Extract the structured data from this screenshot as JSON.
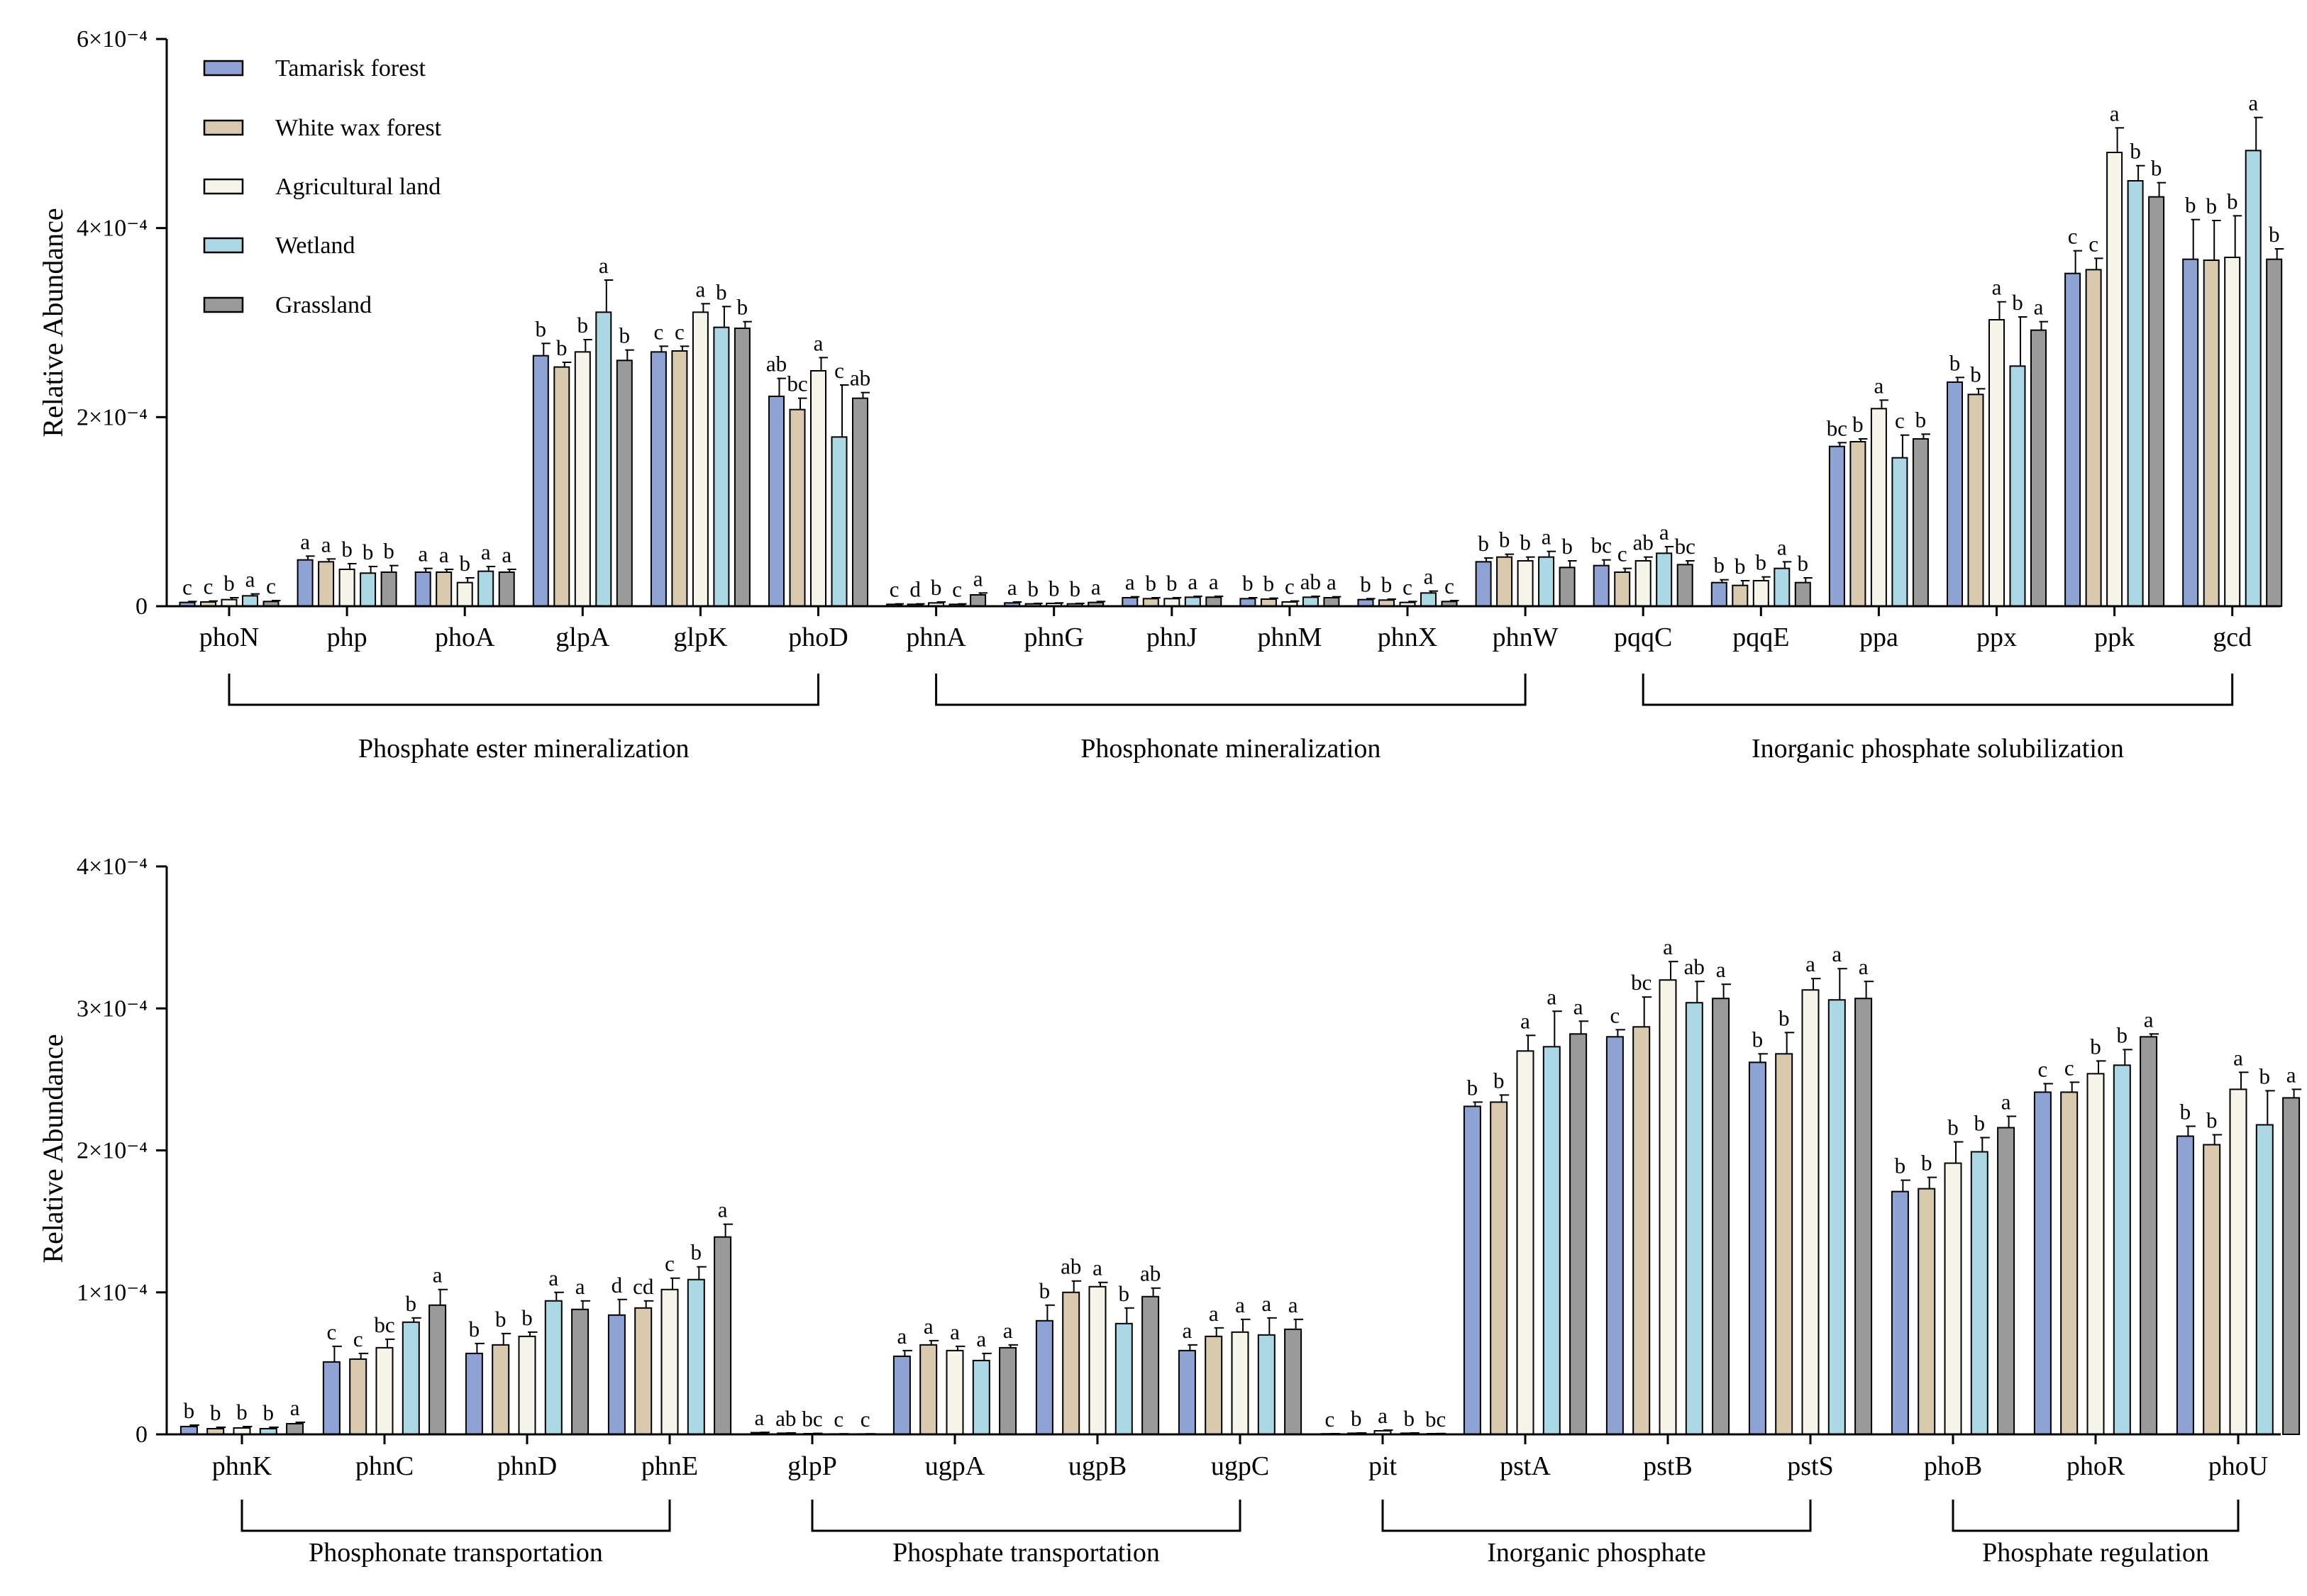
{
  "chart_data": [
    {
      "type": "bar",
      "ylabel": "Relative Abundance",
      "ylim": [
        0,
        0.0006
      ],
      "ytick_labels": [
        "0",
        "2×10⁻⁴",
        "4×10⁻⁴",
        "6×10⁻⁴"
      ],
      "legend_position": "top-left",
      "series": [
        {
          "name": "Tamarisk forest",
          "color": "#8ea3d3"
        },
        {
          "name": "White wax forest",
          "color": "#d9c9ae"
        },
        {
          "name": "Agricultural land",
          "color": "#f7f4ea"
        },
        {
          "name": "Wetland",
          "color": "#acd8e6"
        },
        {
          "name": "Grassland",
          "color": "#9a9a9a"
        }
      ],
      "categories": [
        {
          "gene": "phoN",
          "values": [
            4e-06,
            4.5e-06,
            7e-06,
            1.1e-05,
            5e-06
          ],
          "errors": [
            1e-06,
            1e-06,
            2e-06,
            2e-06,
            1e-06
          ],
          "letters": [
            "c",
            "c",
            "b",
            "a",
            "c"
          ]
        },
        {
          "gene": "php",
          "values": [
            4.9e-05,
            4.7e-05,
            3.9e-05,
            3.5e-05,
            3.6e-05
          ],
          "errors": [
            4e-06,
            3e-06,
            6e-06,
            7e-06,
            7e-06
          ],
          "letters": [
            "a",
            "a",
            "b",
            "b",
            "b"
          ]
        },
        {
          "gene": "phoA",
          "values": [
            3.6e-05,
            3.6e-05,
            2.5e-05,
            3.7e-05,
            3.6e-05
          ],
          "errors": [
            4e-06,
            3e-06,
            5e-06,
            5e-06,
            3e-06
          ],
          "letters": [
            "a",
            "a",
            "b",
            "a",
            "a"
          ]
        },
        {
          "gene": "glpA",
          "values": [
            0.000265,
            0.000253,
            0.000269,
            0.000311,
            0.00026
          ],
          "errors": [
            1.3e-05,
            5e-06,
            1.3e-05,
            3.4e-05,
            1.1e-05
          ],
          "letters": [
            "b",
            "b",
            "b",
            "a",
            "b"
          ]
        },
        {
          "gene": "glpK",
          "values": [
            0.000269,
            0.00027,
            0.000311,
            0.000295,
            0.000294
          ],
          "errors": [
            6e-06,
            5e-06,
            9e-06,
            2.2e-05,
            7e-06
          ],
          "letters": [
            "c",
            "c",
            "a",
            "b",
            "b"
          ]
        },
        {
          "gene": "phoD",
          "values": [
            0.000222,
            0.000208,
            0.000249,
            0.000179,
            0.00022
          ],
          "errors": [
            1.9e-05,
            1.2e-05,
            1.4e-05,
            5.5e-05,
            6e-06
          ],
          "letters": [
            "ab",
            "bc",
            "a",
            "c",
            "ab"
          ]
        },
        {
          "gene": "phnA",
          "values": [
            2e-06,
            2e-06,
            3.5e-06,
            2e-06,
            1.2e-05
          ],
          "errors": [
            5e-07,
            5e-07,
            1e-06,
            5e-07,
            2e-06
          ],
          "letters": [
            "c",
            "d",
            "b",
            "c",
            "a"
          ]
        },
        {
          "gene": "phnG",
          "values": [
            3.5e-06,
            2.5e-06,
            3e-06,
            2.5e-06,
            4e-06
          ],
          "errors": [
            1e-06,
            5e-07,
            5e-07,
            5e-07,
            1e-06
          ],
          "letters": [
            "a",
            "b",
            "b",
            "b",
            "a"
          ]
        },
        {
          "gene": "phnJ",
          "values": [
            9e-06,
            8e-06,
            8e-06,
            9.5e-06,
            9.5e-06
          ],
          "errors": [
            1e-06,
            1e-06,
            1e-06,
            1e-06,
            1e-06
          ],
          "letters": [
            "a",
            "b",
            "b",
            "a",
            "a"
          ]
        },
        {
          "gene": "phnM",
          "values": [
            8e-06,
            7.5e-06,
            4.5e-06,
            9.5e-06,
            9e-06
          ],
          "errors": [
            1e-06,
            1e-06,
            1e-06,
            1e-06,
            1e-06
          ],
          "letters": [
            "b",
            "b",
            "c",
            "ab",
            "a"
          ]
        },
        {
          "gene": "phnX",
          "values": [
            7e-06,
            6.5e-06,
            4e-06,
            1.4e-05,
            5e-06
          ],
          "errors": [
            1e-06,
            1e-06,
            1e-06,
            2e-06,
            1e-06
          ],
          "letters": [
            "b",
            "b",
            "c",
            "a",
            "c"
          ]
        },
        {
          "gene": "phnW",
          "values": [
            4.7e-05,
            5.2e-05,
            4.8e-05,
            5.2e-05,
            4.1e-05
          ],
          "errors": [
            4e-06,
            3e-06,
            4e-06,
            6e-06,
            7e-06
          ],
          "letters": [
            "b",
            "b",
            "b",
            "a",
            "b"
          ]
        },
        {
          "gene": "pqqC",
          "values": [
            4.3e-05,
            3.6e-05,
            4.8e-05,
            5.6e-05,
            4.4e-05
          ],
          "errors": [
            6e-06,
            4e-06,
            4e-06,
            7e-06,
            4e-06
          ],
          "letters": [
            "bc",
            "c",
            "ab",
            "a",
            "bc"
          ]
        },
        {
          "gene": "pqqE",
          "values": [
            2.5e-05,
            2.2e-05,
            2.7e-05,
            4e-05,
            2.5e-05
          ],
          "errors": [
            3e-06,
            5e-06,
            4e-06,
            7e-06,
            5e-06
          ],
          "letters": [
            "b",
            "b",
            "b",
            "a",
            "b"
          ]
        },
        {
          "gene": "ppa",
          "values": [
            0.000169,
            0.000174,
            0.000209,
            0.000157,
            0.000177
          ],
          "errors": [
            4e-06,
            3e-06,
            9e-06,
            2.4e-05,
            5e-06
          ],
          "letters": [
            "bc",
            "b",
            "a",
            "c",
            "b"
          ]
        },
        {
          "gene": "ppx",
          "values": [
            0.000237,
            0.000224,
            0.000303,
            0.000254,
            0.000292
          ],
          "errors": [
            5e-06,
            6e-06,
            1.9e-05,
            5.2e-05,
            9e-06
          ],
          "letters": [
            "b",
            "b",
            "a",
            "b",
            "a"
          ]
        },
        {
          "gene": "ppk",
          "values": [
            0.000352,
            0.000356,
            0.00048,
            0.00045,
            0.000433
          ],
          "errors": [
            2.4e-05,
            1.2e-05,
            2.6e-05,
            1.6e-05,
            1.5e-05
          ],
          "letters": [
            "c",
            "c",
            "a",
            "b",
            "b"
          ]
        },
        {
          "gene": "gcd",
          "values": [
            0.000367,
            0.000366,
            0.000369,
            0.000482,
            0.000367
          ],
          "errors": [
            4.2e-05,
            4.2e-05,
            4.4e-05,
            3.5e-05,
            1.1e-05
          ],
          "letters": [
            "b",
            "b",
            "b",
            "a",
            "b"
          ]
        }
      ],
      "group_labels": [
        "Phosphate ester mineralization",
        "Phosphonate mineralization",
        "Inorganic phosphate solubilization"
      ]
    },
    {
      "type": "bar",
      "ylabel": "Relative Abundance",
      "ylim": [
        0,
        0.0004
      ],
      "ytick_labels": [
        "0",
        "1×10⁻⁴",
        "2×10⁻⁴",
        "3×10⁻⁴",
        "4×10⁻⁴"
      ],
      "series": [
        {
          "name": "Tamarisk forest",
          "color": "#8ea3d3"
        },
        {
          "name": "White wax forest",
          "color": "#d9c9ae"
        },
        {
          "name": "Agricultural land",
          "color": "#f7f4ea"
        },
        {
          "name": "Wetland",
          "color": "#acd8e6"
        },
        {
          "name": "Grassland",
          "color": "#9a9a9a"
        }
      ],
      "categories": [
        {
          "gene": "phnK",
          "values": [
            5.5e-06,
            4e-06,
            4.5e-06,
            4e-06,
            7.5e-06
          ],
          "errors": [
            1e-06,
            1e-06,
            1e-06,
            1e-06,
            1e-06
          ],
          "letters": [
            "b",
            "b",
            "b",
            "b",
            "a"
          ]
        },
        {
          "gene": "phnC",
          "values": [
            5.1e-05,
            5.3e-05,
            6.1e-05,
            7.9e-05,
            9.1e-05
          ],
          "errors": [
            1.1e-05,
            4e-06,
            6e-06,
            3e-06,
            1.1e-05
          ],
          "letters": [
            "c",
            "c",
            "bc",
            "b",
            "a"
          ]
        },
        {
          "gene": "phnD",
          "values": [
            5.7e-05,
            6.3e-05,
            6.9e-05,
            9.4e-05,
            8.8e-05
          ],
          "errors": [
            7e-06,
            8e-06,
            3e-06,
            6e-06,
            6e-06
          ],
          "letters": [
            "b",
            "b",
            "b",
            "a",
            "a"
          ]
        },
        {
          "gene": "phnE",
          "values": [
            8.4e-05,
            8.9e-05,
            0.000102,
            0.000109,
            0.000139
          ],
          "errors": [
            1.1e-05,
            5e-06,
            8e-06,
            9e-06,
            9e-06
          ],
          "letters": [
            "d",
            "cd",
            "c",
            "b",
            "a"
          ]
        },
        {
          "gene": "glpP",
          "values": [
            1.2e-06,
            8e-07,
            5e-07,
            3e-07,
            3e-07
          ],
          "errors": [
            2e-07,
            2e-07,
            2e-07,
            1e-07,
            1e-07
          ],
          "letters": [
            "a",
            "ab",
            "bc",
            "c",
            "c"
          ]
        },
        {
          "gene": "ugpA",
          "values": [
            5.5e-05,
            6.3e-05,
            5.9e-05,
            5.2e-05,
            6.1e-05
          ],
          "errors": [
            4e-06,
            3e-06,
            3e-06,
            5e-06,
            2e-06
          ],
          "letters": [
            "a",
            "a",
            "a",
            "a",
            "a"
          ]
        },
        {
          "gene": "ugpB",
          "values": [
            8e-05,
            0.0001,
            0.000104,
            7.8e-05,
            9.7e-05
          ],
          "errors": [
            1.1e-05,
            8e-06,
            3e-06,
            1.1e-05,
            6e-06
          ],
          "letters": [
            "b",
            "ab",
            "a",
            "b",
            "ab"
          ]
        },
        {
          "gene": "ugpC",
          "values": [
            5.9e-05,
            6.9e-05,
            7.2e-05,
            7e-05,
            7.4e-05
          ],
          "errors": [
            4e-06,
            6e-06,
            9e-06,
            1.2e-05,
            7e-06
          ],
          "letters": [
            "a",
            "a",
            "a",
            "a",
            "a"
          ]
        },
        {
          "gene": "pit",
          "values": [
            4e-07,
            8e-07,
            2.5e-06,
            8e-07,
            5e-07
          ],
          "errors": [
            1e-07,
            2e-07,
            5e-07,
            2e-07,
            1e-07
          ],
          "letters": [
            "c",
            "b",
            "a",
            "b",
            "bc"
          ]
        },
        {
          "gene": "pstA",
          "values": [
            0.000231,
            0.000234,
            0.00027,
            0.000273,
            0.000282
          ],
          "errors": [
            3e-06,
            5e-06,
            1.1e-05,
            2.5e-05,
            9e-06
          ],
          "letters": [
            "b",
            "b",
            "a",
            "a",
            "a"
          ]
        },
        {
          "gene": "pstB",
          "values": [
            0.00028,
            0.000287,
            0.00032,
            0.000304,
            0.000307
          ],
          "errors": [
            5e-06,
            2.1e-05,
            1.3e-05,
            1.5e-05,
            1e-05
          ],
          "letters": [
            "c",
            "bc",
            "a",
            "ab",
            "a"
          ]
        },
        {
          "gene": "pstS",
          "values": [
            0.000262,
            0.000268,
            0.000313,
            0.000306,
            0.000307
          ],
          "errors": [
            6e-06,
            1.5e-05,
            8e-06,
            2.2e-05,
            1.2e-05
          ],
          "letters": [
            "b",
            "b",
            "a",
            "a",
            "a"
          ]
        },
        {
          "gene": "phoB",
          "values": [
            0.000171,
            0.000173,
            0.000191,
            0.000199,
            0.000216
          ],
          "errors": [
            8e-06,
            8e-06,
            1.5e-05,
            1e-05,
            8e-06
          ],
          "letters": [
            "b",
            "b",
            "b",
            "b",
            "a"
          ]
        },
        {
          "gene": "phoR",
          "values": [
            0.000241,
            0.000241,
            0.000254,
            0.00026,
            0.00028
          ],
          "errors": [
            6e-06,
            7e-06,
            9e-06,
            1.1e-05,
            2e-06
          ],
          "letters": [
            "c",
            "c",
            "b",
            "b",
            "a"
          ]
        },
        {
          "gene": "phoU",
          "values": [
            0.00021,
            0.000204,
            0.000243,
            0.000218,
            0.000237
          ],
          "errors": [
            7e-06,
            7e-06,
            1.2e-05,
            2.4e-05,
            6e-06
          ],
          "letters": [
            "b",
            "b",
            "a",
            "b",
            "a"
          ]
        }
      ],
      "group_labels": [
        "Phosphonate transportation",
        "Phosphate transportation",
        "Inorganic phosphate",
        "Phosphate regulation"
      ]
    }
  ]
}
